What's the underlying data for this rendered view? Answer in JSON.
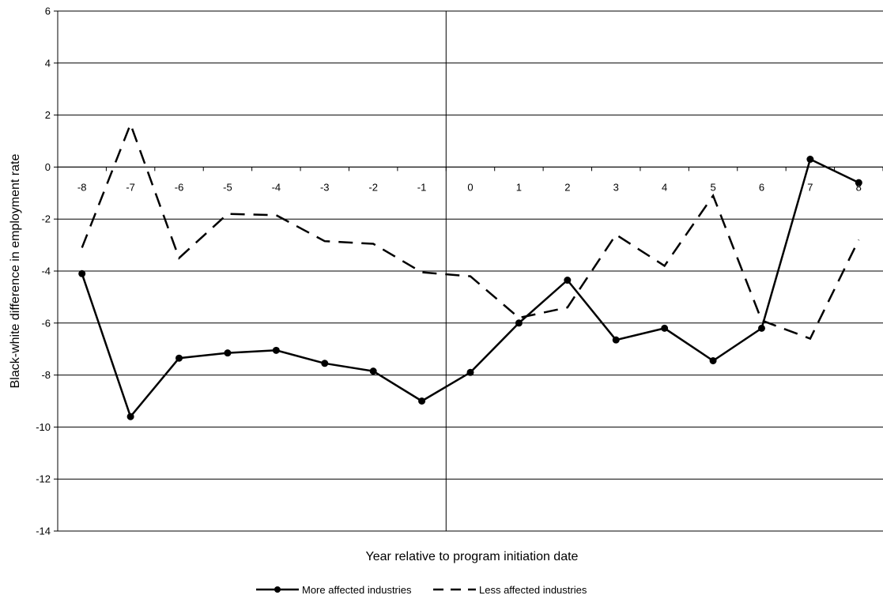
{
  "chart_data": {
    "type": "line",
    "title": "",
    "xlabel": "Year relative to program initiation date",
    "ylabel": "Black-white difference in employment rate",
    "x": [
      -8,
      -7,
      -6,
      -5,
      -4,
      -3,
      -2,
      -1,
      0,
      1,
      2,
      3,
      4,
      5,
      6,
      7,
      8
    ],
    "x_tick_labels": [
      "-8",
      "-7",
      "-6",
      "-5",
      "-4",
      "-3",
      "-2",
      "-1",
      "0",
      "1",
      "2",
      "3",
      "4",
      "5",
      "6",
      "7",
      "8"
    ],
    "ylim": [
      -14,
      6
    ],
    "y_ticks": [
      -14,
      -12,
      -10,
      -8,
      -6,
      -4,
      -2,
      0,
      2,
      4,
      6
    ],
    "y_tick_labels": [
      "-14",
      "-12",
      "-10",
      "-8",
      "-6",
      "-4",
      "-2",
      "0",
      "2",
      "4",
      "6"
    ],
    "grid": "horizontal",
    "reference_line_x": -0.5,
    "legend_position": "bottom",
    "series": [
      {
        "name": "More affected industries",
        "style": "solid-markers",
        "color": "#000000",
        "values": [
          -4.1,
          -9.6,
          -7.35,
          -7.15,
          -7.05,
          -7.55,
          -7.85,
          -9.0,
          -7.9,
          -6.0,
          -4.35,
          -6.65,
          -6.2,
          -7.45,
          -6.2,
          0.3,
          -0.6
        ]
      },
      {
        "name": "Less affected industries",
        "style": "dashed",
        "color": "#000000",
        "values": [
          -3.1,
          1.65,
          -3.5,
          -1.8,
          -1.85,
          -2.85,
          -2.95,
          -4.05,
          -4.2,
          -5.8,
          -5.4,
          -2.6,
          -3.8,
          -1.1,
          -5.9,
          -6.6,
          -2.8
        ]
      }
    ]
  }
}
